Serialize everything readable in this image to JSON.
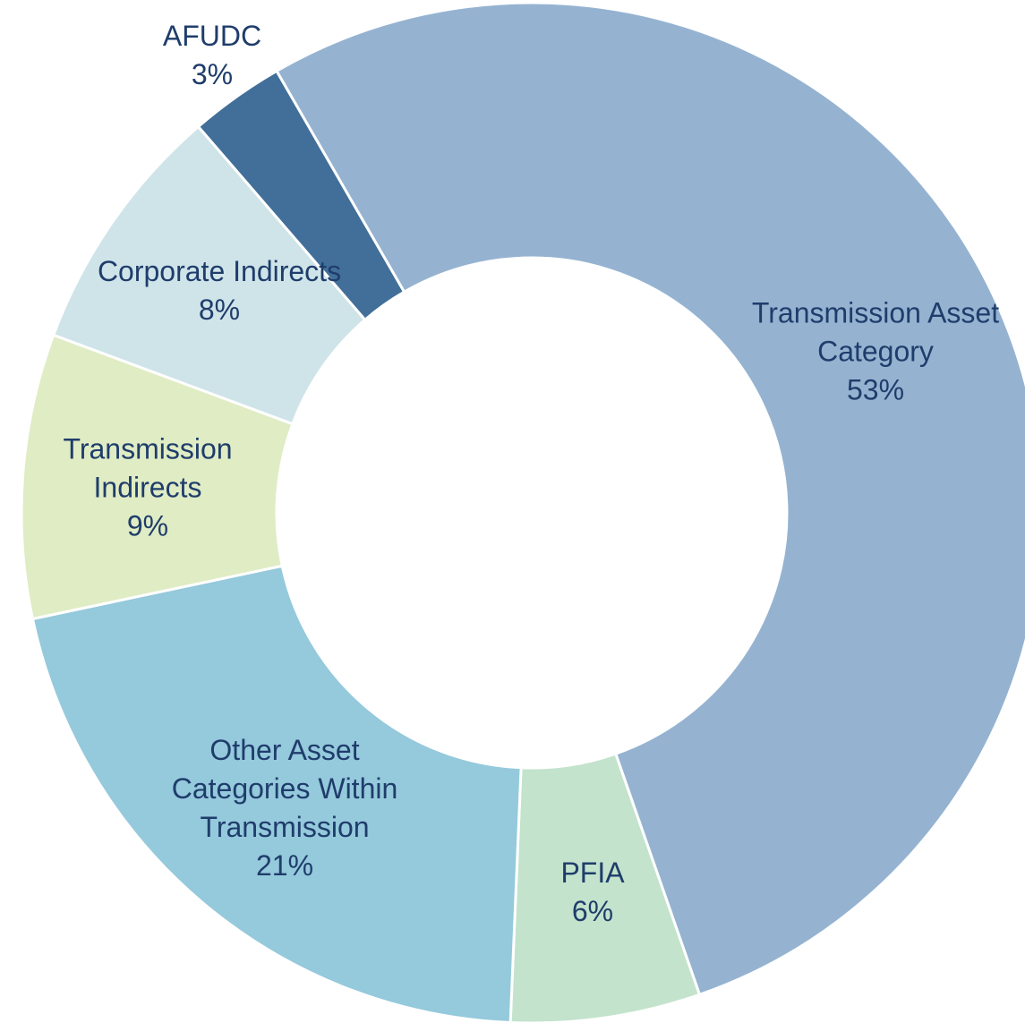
{
  "chart_data": {
    "type": "donut",
    "categories": [
      "Transmission Asset Category",
      "PFIA",
      "Other Asset Categories Within Transmission",
      "Transmission Indirects",
      "Corporate Indirects",
      "AFUDC"
    ],
    "values": [
      53,
      6,
      21,
      9,
      8,
      3
    ],
    "value_labels": [
      "53%",
      "6%",
      "21%",
      "9%",
      "8%",
      "3%"
    ],
    "colors": [
      "#95b3d1",
      "#c3e3cc",
      "#95c9dc",
      "#e0ecc4",
      "#cfe4e9",
      "#416f99"
    ]
  }
}
